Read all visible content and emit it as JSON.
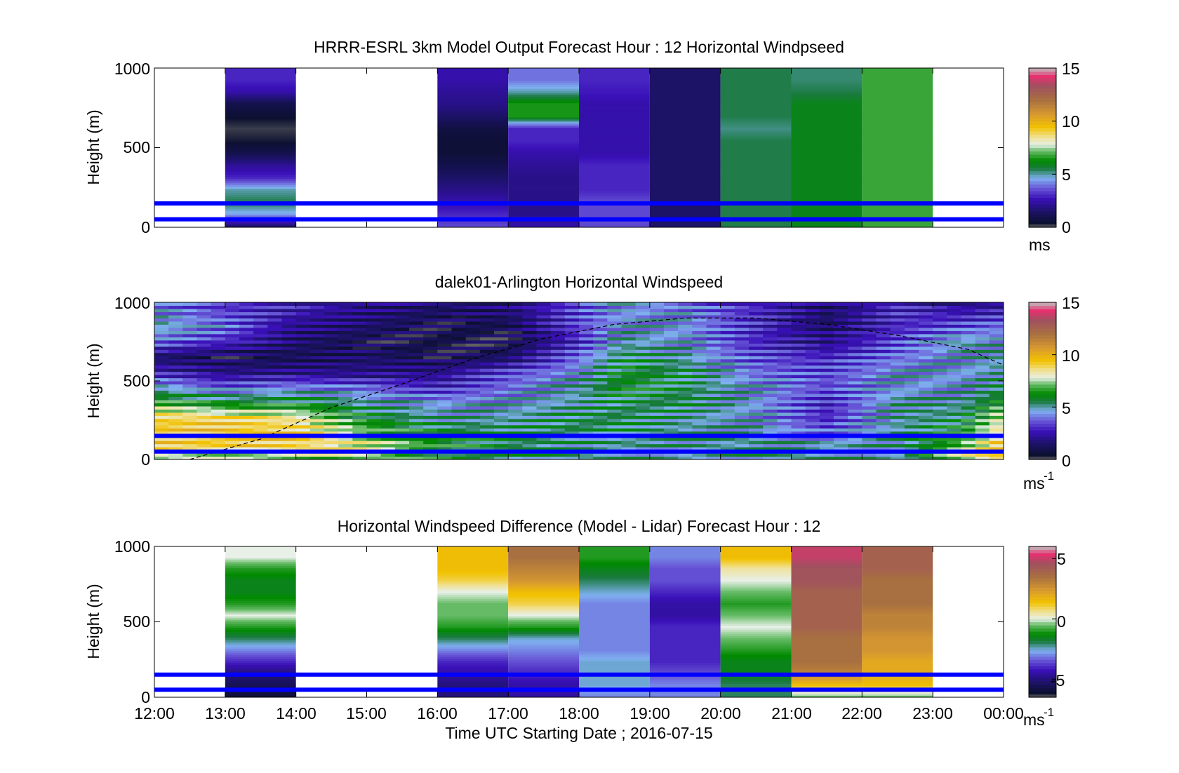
{
  "figure": {
    "xlabel": "Time UTC  Starting Date ; 2016-07-15",
    "x_ticks": [
      "12:00",
      "13:00",
      "14:00",
      "15:00",
      "16:00",
      "17:00",
      "18:00",
      "19:00",
      "20:00",
      "21:00",
      "22:00",
      "23:00",
      "00:00"
    ]
  },
  "chart_data": [
    {
      "type": "heatmap",
      "title": "HRRR-ESRL 3km Model Output   Forecast Hour : 12 Horizontal Windpseed",
      "ylabel": "Height (m)",
      "y_ticks": [
        "0",
        "500",
        "1000"
      ],
      "ylim": [
        0,
        1000
      ],
      "x_range_hours": [
        12,
        24
      ],
      "colorbar": {
        "label": "ms",
        "ticks": [
          "0",
          "5",
          "10",
          "15"
        ],
        "range": [
          0,
          15
        ]
      },
      "reference_lines_m": [
        50,
        150
      ],
      "columns": [
        {
          "hour_start": 13,
          "hour_end": 14,
          "profile_ms": [
            1.5,
            4.5,
            5.5,
            5,
            3,
            2.2,
            1,
            0.4,
            0.2,
            0.5,
            1,
            2.5,
            3
          ]
        },
        {
          "hour_start": 16,
          "hour_end": 17,
          "profile_ms": [
            3.5,
            3,
            2.5,
            2,
            1.5,
            1,
            0.6,
            0.6,
            0.8,
            1.5,
            2,
            2.2,
            2.5
          ]
        },
        {
          "hour_start": 17,
          "hour_end": 18,
          "profile_ms": [
            2.5,
            2,
            2,
            2,
            2,
            2.2,
            2.5,
            3,
            3,
            6.5,
            6.5,
            5,
            4
          ]
        },
        {
          "hour_start": 18,
          "hour_end": 19,
          "profile_ms": [
            3.5,
            3.5,
            3.5,
            3,
            3,
            3,
            2.5,
            2.5,
            2.5,
            2.5,
            2.5,
            2.8,
            3
          ]
        },
        {
          "hour_start": 19,
          "hour_end": 20,
          "profile_ms": [
            1.5,
            1.5,
            1.5,
            1.5,
            1.5,
            1.5,
            1.5,
            1.5,
            1.5,
            1.5,
            1.5,
            1.5,
            1.5
          ]
        },
        {
          "hour_start": 20,
          "hour_end": 21,
          "profile_ms": [
            5.5,
            5.5,
            5.5,
            5.5,
            5.5,
            5.5,
            5.5,
            5.5,
            5.2,
            5.5,
            5.5,
            5.5,
            5.5
          ]
        },
        {
          "hour_start": 21,
          "hour_end": 22,
          "profile_ms": [
            6,
            6,
            6,
            6,
            6,
            6,
            6,
            6,
            6,
            6,
            6,
            5.5,
            5.3
          ]
        },
        {
          "hour_start": 22,
          "hour_end": 23,
          "profile_ms": [
            6.8,
            6.8,
            6.8,
            6.8,
            6.8,
            6.8,
            6.8,
            6.8,
            6.8,
            6.8,
            6.8,
            6.8,
            6.8
          ]
        }
      ]
    },
    {
      "type": "heatmap",
      "title": "dalek01-Arlington  Horizontal Windspeed",
      "ylabel": "Height (m)",
      "y_ticks": [
        "0",
        "500",
        "1000"
      ],
      "ylim": [
        0,
        1000
      ],
      "x_range_hours": [
        12,
        24
      ],
      "colorbar": {
        "label": "ms",
        "label_superscript": "-1",
        "ticks": [
          "0",
          "5",
          "10",
          "15"
        ],
        "range": [
          0,
          15
        ]
      },
      "reference_lines_m": [
        50,
        150
      ],
      "keypoints_m": [
        0,
        80,
        160,
        260,
        360,
        450,
        550,
        650,
        750,
        850,
        1000
      ],
      "keyprofiles": [
        {
          "hour": 12.0,
          "profile_ms": [
            7,
            9,
            9.5,
            9,
            7,
            5,
            3,
            1.5,
            4,
            5,
            4
          ]
        },
        {
          "hour": 13.0,
          "profile_ms": [
            7,
            9,
            9.5,
            9,
            6,
            4,
            2,
            1,
            3,
            4,
            3
          ]
        },
        {
          "hour": 14.0,
          "profile_ms": [
            7,
            9,
            9,
            8.5,
            6,
            4.5,
            2,
            1.2,
            1.5,
            2,
            3
          ]
        },
        {
          "hour": 15.0,
          "profile_ms": [
            7,
            8,
            7.5,
            6,
            5,
            4,
            2,
            1.5,
            1,
            1.5,
            2
          ]
        },
        {
          "hour": 16.0,
          "profile_ms": [
            6,
            6.5,
            6,
            5,
            4.5,
            3,
            2,
            1,
            0.8,
            1,
            1.5
          ]
        },
        {
          "hour": 17.0,
          "profile_ms": [
            5.5,
            5.5,
            5.5,
            5,
            4.5,
            4,
            3.5,
            1.5,
            0.8,
            1,
            2
          ]
        },
        {
          "hour": 18.0,
          "profile_ms": [
            5,
            5,
            5.5,
            5.5,
            5,
            5,
            4.5,
            4,
            3,
            3.5,
            3.5
          ]
        },
        {
          "hour": 18.6,
          "profile_ms": [
            5,
            5,
            5.5,
            5.5,
            5.5,
            6,
            6,
            5.5,
            5,
            4.5,
            4.5
          ]
        },
        {
          "hour": 19.5,
          "profile_ms": [
            5,
            5,
            5,
            5,
            5.5,
            5.5,
            5.5,
            5,
            4.5,
            4.5,
            4
          ]
        },
        {
          "hour": 20.5,
          "profile_ms": [
            5,
            5,
            5,
            4.5,
            4.5,
            4.5,
            4,
            3.5,
            3,
            3,
            3
          ]
        },
        {
          "hour": 21.5,
          "profile_ms": [
            5,
            5,
            4,
            3,
            3,
            3.5,
            3.5,
            3,
            2,
            1.5,
            1.5
          ]
        },
        {
          "hour": 22.5,
          "profile_ms": [
            5,
            5,
            5,
            5,
            5,
            4.5,
            4.5,
            4,
            3.5,
            3,
            3
          ]
        },
        {
          "hour": 23.4,
          "profile_ms": [
            8,
            7,
            6.5,
            5.5,
            5,
            4.5,
            4.5,
            4.5,
            5,
            3.5,
            2
          ]
        },
        {
          "hour": 24.0,
          "profile_ms": [
            9,
            9.5,
            9,
            8,
            6.5,
            5.5,
            5,
            5,
            4.5,
            4,
            2
          ]
        }
      ],
      "dashed_curve": [
        {
          "hour": 12.5,
          "height_m": 0
        },
        {
          "hour": 13.5,
          "height_m": 130
        },
        {
          "hour": 14.5,
          "height_m": 330
        },
        {
          "hour": 15.5,
          "height_m": 480
        },
        {
          "hour": 16.5,
          "height_m": 640
        },
        {
          "hour": 17.5,
          "height_m": 770
        },
        {
          "hour": 18.5,
          "height_m": 860
        },
        {
          "hour": 19.5,
          "height_m": 900
        },
        {
          "hour": 20.5,
          "height_m": 900
        },
        {
          "hour": 21.5,
          "height_m": 860
        },
        {
          "hour": 22.5,
          "height_m": 790
        },
        {
          "hour": 23.5,
          "height_m": 700
        },
        {
          "hour": 24.0,
          "height_m": 600
        }
      ]
    },
    {
      "type": "heatmap",
      "title": "Horizontal Windspeed Difference (Model - Lidar) Forecast Hour : 12",
      "ylabel": "Height (m)",
      "y_ticks": [
        "0",
        "500",
        "1000"
      ],
      "ylim": [
        0,
        1000
      ],
      "x_range_hours": [
        12,
        24
      ],
      "colorbar": {
        "label": "ms",
        "label_superscript": "-1",
        "ticks": [
          "-5",
          "0",
          "5"
        ],
        "range": [
          -6.5,
          6
        ]
      },
      "reference_lines_m": [
        50,
        150
      ],
      "columns": [
        {
          "hour_start": 13,
          "hour_end": 14,
          "profile_ms": [
            -6,
            -5.5,
            -5,
            -4,
            -3,
            -2,
            -1,
            0,
            -1,
            -1.5,
            -1.5,
            -1,
            0
          ]
        },
        {
          "hour_start": 16,
          "hour_end": 17,
          "profile_ms": [
            -5,
            -5,
            -4.5,
            -4,
            -3,
            -2,
            -1,
            -0.5,
            -0.5,
            0,
            1,
            1.5,
            1.5
          ]
        },
        {
          "hour_start": 17,
          "hour_end": 18,
          "profile_ms": [
            -4.5,
            -4.5,
            -4,
            -3.5,
            -3,
            -2.5,
            -1,
            0,
            1,
            1.5,
            2.5,
            3,
            3.5
          ]
        },
        {
          "hour_start": 18,
          "hour_end": 19,
          "profile_ms": [
            -3,
            -2.5,
            -2.5,
            -2.5,
            -3,
            -3,
            -3,
            -3,
            -3,
            -2.5,
            -2,
            -1.5,
            -1
          ]
        },
        {
          "hour_start": 19,
          "hour_end": 20,
          "profile_ms": [
            -3,
            -3,
            -3.5,
            -4,
            -4,
            -4,
            -4,
            -4.5,
            -4.5,
            -4,
            -3.5,
            -3.5,
            -3
          ]
        },
        {
          "hour_start": 20,
          "hour_end": 21,
          "profile_ms": [
            -2,
            -2,
            -1.5,
            -1.5,
            -1,
            -0.5,
            0,
            -0.5,
            -1,
            -0.5,
            0,
            0.5,
            1.5
          ]
        },
        {
          "hour_start": 21,
          "hour_end": 22,
          "profile_ms": [
            -0.5,
            1.5,
            3,
            3.5,
            3.5,
            3.5,
            4,
            4,
            4,
            4,
            4.5,
            4.5,
            5
          ]
        },
        {
          "hour_start": 22,
          "hour_end": 23,
          "profile_ms": [
            -0.5,
            1.5,
            2,
            2,
            2.5,
            2.5,
            3,
            3,
            3.5,
            3.5,
            3.5,
            4,
            4
          ]
        }
      ]
    }
  ]
}
